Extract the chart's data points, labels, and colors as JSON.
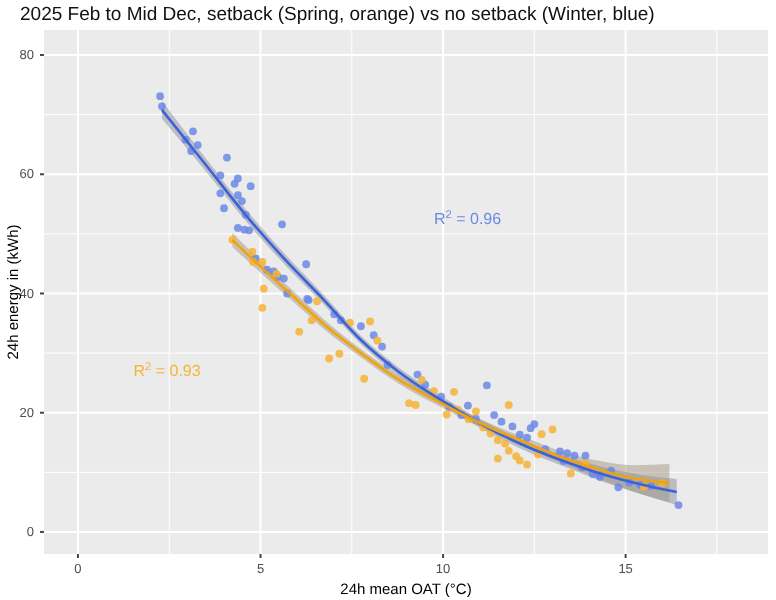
{
  "chart_data": {
    "type": "scatter",
    "title": "2025 Feb to Mid Dec, setback (Spring, orange) vs no setback (Winter, blue)",
    "xlabel": "24h mean OAT (°C)",
    "ylabel": "24h energy in (kWh)",
    "xlim": [
      -0.93,
      18.9
    ],
    "ylim": [
      -3.7,
      84.2
    ],
    "xticks": [
      0,
      5,
      10,
      15
    ],
    "yticks": [
      0,
      20,
      40,
      60,
      80
    ],
    "grid": true,
    "series": [
      {
        "marker": "circle",
        "color": "#6b8ae6",
        "x": [
          2.25,
          2.3,
          2.95,
          3.15,
          3.28,
          3.1,
          3.9,
          4.08,
          3.9,
          4.0,
          4.29,
          4.38,
          4.38,
          4.49,
          4.73,
          4.6,
          4.38,
          4.56,
          4.69,
          5.59,
          4.87,
          5.18,
          5.36,
          5.48,
          5.64,
          6.25,
          6.28,
          5.73,
          6.32,
          7.02,
          7.2,
          7.75,
          8.1,
          8.33,
          8.48,
          9.3,
          9.51,
          9.95,
          10.17,
          10.68,
          11.2,
          10.5,
          10.9,
          11.4,
          11.6,
          11.9,
          12.1,
          12.4,
          12.5,
          12.3,
          12.8,
          13.2,
          13.4,
          13.6,
          13.9,
          13.3,
          13.8,
          14.1,
          14.3,
          14.6,
          14.8,
          15.1,
          15.4,
          15.7,
          16.45,
          14.3
        ],
        "values": [
          73.1,
          71.4,
          65.8,
          67.2,
          64.9,
          63.9,
          59.8,
          62.8,
          56.8,
          54.3,
          58.4,
          59.3,
          56.5,
          55.5,
          58,
          53.2,
          51,
          50.7,
          50.6,
          51.6,
          45.9,
          44,
          43.7,
          42.8,
          42.5,
          44.9,
          39.1,
          40,
          38.9,
          36.5,
          35.5,
          34.5,
          33,
          31.1,
          28,
          26.4,
          24.7,
          22.7,
          21,
          21.2,
          24.6,
          19.6,
          19,
          19.6,
          18.5,
          17.7,
          16.3,
          17.4,
          18.1,
          15.8,
          13.9,
          13.5,
          13.2,
          12.8,
          12.8,
          11.9,
          10.8,
          9.7,
          9.5,
          10.3,
          7.5,
          8.3,
          7.9,
          7.7,
          4.5,
          9.2
        ]
      },
      {
        "marker": "circle",
        "color": "#f5b335",
        "x": [
          4.23,
          4.78,
          5.05,
          4.8,
          5.09,
          5.44,
          5.05,
          6.06,
          6.55,
          6.4,
          6.88,
          7.16,
          7.45,
          7.84,
          8.0,
          8.2,
          9.07,
          9.25,
          9.42,
          9.75,
          10.3,
          10.4,
          10.1,
          10.7,
          10.9,
          11.1,
          11.3,
          11.5,
          11.7,
          11.5,
          11.8,
          12.0,
          12.1,
          12.3,
          11.8,
          12.7,
          13.0,
          12.6,
          13.5,
          13.9,
          16.0,
          15.5
        ],
        "values": [
          49,
          47,
          45.3,
          45.3,
          40.8,
          43.3,
          37.6,
          33.6,
          38.7,
          35.5,
          29.1,
          29.9,
          35.1,
          25.7,
          35.3,
          32.1,
          21.6,
          21.3,
          25.5,
          23.6,
          23.5,
          20.5,
          19.7,
          18.9,
          20.2,
          17.5,
          16.5,
          15.4,
          14.8,
          12.3,
          13.6,
          12.7,
          12,
          11.3,
          21.3,
          16.4,
          17.2,
          13,
          9.8,
          11.5,
          8.2,
          7.6
        ]
      },
      {
        "type": "line",
        "marker": "none",
        "color": "#3d62d8",
        "x": [
          2.3,
          3.5,
          4.63,
          5.7,
          6.74,
          7.75,
          8.8,
          9.95,
          11.1,
          12.3,
          13.3,
          14.3,
          15.4,
          16.4
        ],
        "values": [
          70.8,
          61.6,
          52.9,
          45.5,
          38.9,
          32.2,
          26.8,
          22.1,
          17.9,
          14.3,
          11.9,
          9.8,
          8.0,
          6.7
        ],
        "lower": [
          69.3,
          60.5,
          51.9,
          44.6,
          38.1,
          31.5,
          26.1,
          21.4,
          17.2,
          13.5,
          11,
          8.6,
          6.4,
          4.5
        ],
        "upper": [
          72.3,
          62.7,
          53.9,
          46.4,
          39.7,
          32.9,
          27.5,
          22.8,
          18.6,
          15.1,
          12.8,
          11,
          9.6,
          8.9
        ]
      },
      {
        "type": "line",
        "marker": "none",
        "color": "#f0a30a",
        "x": [
          4.23,
          5.0,
          5.9,
          6.8,
          7.75,
          8.8,
          9.95,
          11.1,
          12.3,
          13.3,
          14.3,
          15.2,
          16.2
        ],
        "values": [
          49,
          44.5,
          39.5,
          34.5,
          30.0,
          25.5,
          21.6,
          18.0,
          14.9,
          12.4,
          10.4,
          9.0,
          8.2
        ],
        "lower": [
          47.8,
          43.5,
          38.6,
          33.7,
          29.3,
          24.8,
          20.9,
          17.3,
          14.1,
          11.4,
          8.9,
          6.8,
          5.0
        ],
        "upper": [
          50.2,
          45.5,
          40.4,
          35.3,
          30.7,
          26.2,
          22.3,
          18.7,
          15.7,
          13.4,
          11.9,
          11.2,
          11.4
        ]
      }
    ],
    "annotations": [
      "R$^{2}$ = 0.96",
      "R$^{2}$ = 0.93"
    ]
  }
}
